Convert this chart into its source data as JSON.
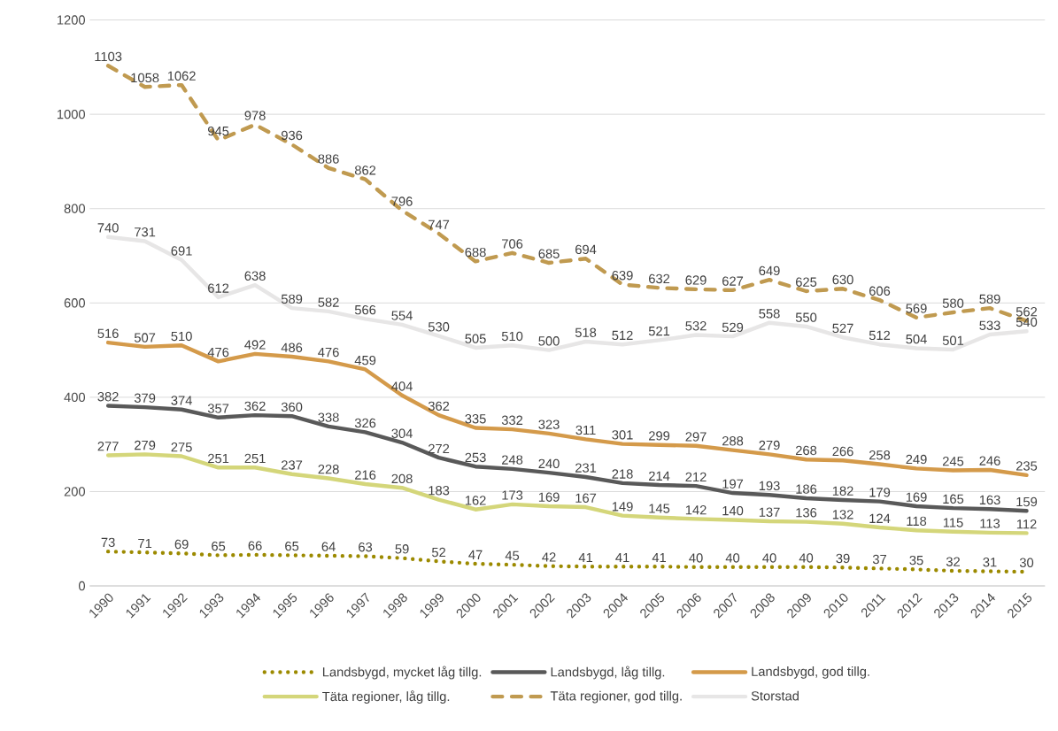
{
  "chart_data": {
    "type": "line",
    "categories": [
      "1990",
      "1991",
      "1992",
      "1993",
      "1994",
      "1995",
      "1996",
      "1997",
      "1998",
      "1999",
      "2000",
      "2001",
      "2002",
      "2003",
      "2004",
      "2005",
      "2006",
      "2007",
      "2008",
      "2009",
      "2010",
      "2011",
      "2012",
      "2013",
      "2014",
      "2015"
    ],
    "series": [
      {
        "name": "Landsbygd, mycket låg tillg.",
        "color": "#9c8a00",
        "line_style": "dotted",
        "values": [
          73,
          71,
          69,
          65,
          66,
          65,
          64,
          63,
          59,
          52,
          47,
          45,
          42,
          41,
          41,
          41,
          40,
          40,
          40,
          40,
          39,
          37,
          35,
          32,
          31,
          30
        ]
      },
      {
        "name": "Landsbygd, låg tillg.",
        "color": "#595959",
        "line_style": "solid",
        "values": [
          382,
          379,
          374,
          357,
          362,
          360,
          338,
          326,
          304,
          272,
          253,
          248,
          240,
          231,
          218,
          214,
          212,
          197,
          193,
          186,
          182,
          179,
          169,
          165,
          163,
          159
        ]
      },
      {
        "name": "Landsbygd, god tillg.",
        "color": "#d49a4a",
        "line_style": "solid",
        "values": [
          516,
          507,
          510,
          476,
          492,
          486,
          476,
          459,
          404,
          362,
          335,
          332,
          323,
          311,
          301,
          299,
          297,
          288,
          279,
          268,
          266,
          258,
          249,
          245,
          246,
          235
        ]
      },
      {
        "name": "Täta regioner, låg tillg.",
        "color": "#d4d67a",
        "line_style": "solid",
        "values": [
          277,
          279,
          275,
          251,
          251,
          237,
          228,
          216,
          208,
          183,
          162,
          173,
          169,
          167,
          149,
          145,
          142,
          140,
          137,
          136,
          132,
          124,
          118,
          115,
          113,
          112
        ]
      },
      {
        "name": "Täta regioner, god tillg.",
        "color": "#c09a50",
        "line_style": "dashed",
        "values": [
          1103,
          1058,
          1062,
          945,
          978,
          936,
          886,
          862,
          796,
          747,
          688,
          706,
          685,
          694,
          639,
          632,
          629,
          627,
          649,
          625,
          630,
          606,
          569,
          580,
          589,
          562
        ]
      },
      {
        "name": "Storstad",
        "color": "#e7e6e6",
        "line_style": "solid",
        "values": [
          740,
          731,
          691,
          612,
          638,
          589,
          582,
          566,
          554,
          530,
          505,
          510,
          500,
          518,
          512,
          521,
          532,
          529,
          558,
          550,
          527,
          512,
          504,
          501,
          533,
          540
        ]
      }
    ],
    "ylim": [
      0,
      1200
    ],
    "yticks": [
      0,
      200,
      400,
      600,
      800,
      1000,
      1200
    ],
    "grid": "y",
    "legend": "bottom",
    "data_labels": true
  }
}
